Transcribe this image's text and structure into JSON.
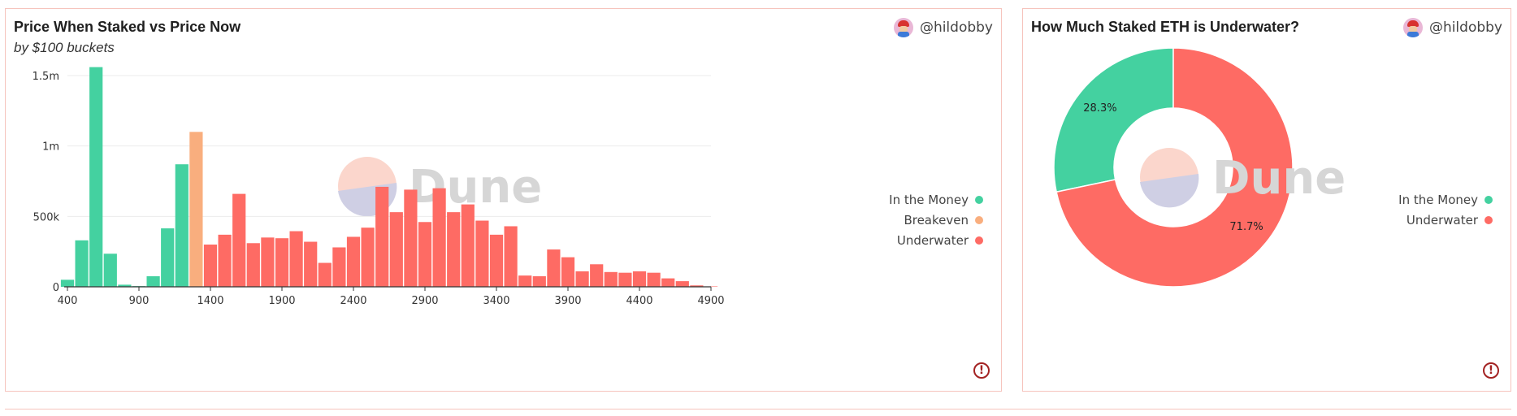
{
  "left_panel": {
    "title": "Price When Staked vs Price Now",
    "subtitle": "by $100 buckets",
    "author": "@hildobby",
    "warning_icon": "!",
    "watermark": "Dune"
  },
  "right_panel": {
    "title": "How Much Staked ETH is Underwater?",
    "author": "@hildobby",
    "warning_icon": "!",
    "watermark": "Dune"
  },
  "colors": {
    "in_the_money": "#44d1a0",
    "breakeven": "#f9ae7e",
    "underwater": "#fe6b64",
    "grid": "#ebebeb",
    "axis": "#333333"
  },
  "chart_data": [
    {
      "type": "bar",
      "title": "Price When Staked vs Price Now",
      "subtitle": "by $100 buckets",
      "xlabel": "",
      "ylabel": "",
      "xlim": [
        400,
        4900
      ],
      "ylim": [
        0,
        1500000
      ],
      "x_ticks": [
        400,
        900,
        1400,
        1900,
        2400,
        2900,
        3400,
        3900,
        4400,
        4900
      ],
      "y_ticks": [
        0,
        500000,
        1000000,
        1500000
      ],
      "y_tick_labels": [
        "0",
        "500k",
        "1m",
        "1.5m"
      ],
      "grid": true,
      "legend_position": "right",
      "legend": [
        {
          "name": "In the Money",
          "key": "in_the_money"
        },
        {
          "name": "Breakeven",
          "key": "breakeven"
        },
        {
          "name": "Underwater",
          "key": "underwater"
        }
      ],
      "bars": [
        {
          "x": 400,
          "value": 50000,
          "series": "in_the_money"
        },
        {
          "x": 500,
          "value": 330000,
          "series": "in_the_money"
        },
        {
          "x": 600,
          "value": 1560000,
          "series": "in_the_money"
        },
        {
          "x": 700,
          "value": 235000,
          "series": "in_the_money"
        },
        {
          "x": 800,
          "value": 15000,
          "series": "in_the_money"
        },
        {
          "x": 900,
          "value": 5000,
          "series": "in_the_money"
        },
        {
          "x": 1000,
          "value": 75000,
          "series": "in_the_money"
        },
        {
          "x": 1100,
          "value": 415000,
          "series": "in_the_money"
        },
        {
          "x": 1200,
          "value": 870000,
          "series": "in_the_money"
        },
        {
          "x": 1300,
          "value": 1100000,
          "series": "breakeven"
        },
        {
          "x": 1400,
          "value": 300000,
          "series": "underwater"
        },
        {
          "x": 1500,
          "value": 370000,
          "series": "underwater"
        },
        {
          "x": 1600,
          "value": 660000,
          "series": "underwater"
        },
        {
          "x": 1700,
          "value": 310000,
          "series": "underwater"
        },
        {
          "x": 1800,
          "value": 350000,
          "series": "underwater"
        },
        {
          "x": 1900,
          "value": 345000,
          "series": "underwater"
        },
        {
          "x": 2000,
          "value": 395000,
          "series": "underwater"
        },
        {
          "x": 2100,
          "value": 320000,
          "series": "underwater"
        },
        {
          "x": 2200,
          "value": 170000,
          "series": "underwater"
        },
        {
          "x": 2300,
          "value": 280000,
          "series": "underwater"
        },
        {
          "x": 2400,
          "value": 355000,
          "series": "underwater"
        },
        {
          "x": 2500,
          "value": 420000,
          "series": "underwater"
        },
        {
          "x": 2600,
          "value": 710000,
          "series": "underwater"
        },
        {
          "x": 2700,
          "value": 530000,
          "series": "underwater"
        },
        {
          "x": 2800,
          "value": 690000,
          "series": "underwater"
        },
        {
          "x": 2900,
          "value": 460000,
          "series": "underwater"
        },
        {
          "x": 3000,
          "value": 700000,
          "series": "underwater"
        },
        {
          "x": 3100,
          "value": 530000,
          "series": "underwater"
        },
        {
          "x": 3200,
          "value": 585000,
          "series": "underwater"
        },
        {
          "x": 3300,
          "value": 470000,
          "series": "underwater"
        },
        {
          "x": 3400,
          "value": 370000,
          "series": "underwater"
        },
        {
          "x": 3500,
          "value": 430000,
          "series": "underwater"
        },
        {
          "x": 3600,
          "value": 80000,
          "series": "underwater"
        },
        {
          "x": 3700,
          "value": 75000,
          "series": "underwater"
        },
        {
          "x": 3800,
          "value": 265000,
          "series": "underwater"
        },
        {
          "x": 3900,
          "value": 210000,
          "series": "underwater"
        },
        {
          "x": 4000,
          "value": 110000,
          "series": "underwater"
        },
        {
          "x": 4100,
          "value": 160000,
          "series": "underwater"
        },
        {
          "x": 4200,
          "value": 105000,
          "series": "underwater"
        },
        {
          "x": 4300,
          "value": 100000,
          "series": "underwater"
        },
        {
          "x": 4400,
          "value": 110000,
          "series": "underwater"
        },
        {
          "x": 4500,
          "value": 100000,
          "series": "underwater"
        },
        {
          "x": 4600,
          "value": 60000,
          "series": "underwater"
        },
        {
          "x": 4700,
          "value": 40000,
          "series": "underwater"
        },
        {
          "x": 4800,
          "value": 10000,
          "series": "underwater"
        },
        {
          "x": 4900,
          "value": 3000,
          "series": "underwater"
        }
      ]
    },
    {
      "type": "pie",
      "donut": true,
      "title": "How Much Staked ETH is Underwater?",
      "legend_position": "right",
      "slices": [
        {
          "name": "In the Money",
          "value": 28.3,
          "label": "28.3%",
          "key": "in_the_money"
        },
        {
          "name": "Underwater",
          "value": 71.7,
          "label": "71.7%",
          "key": "underwater"
        }
      ]
    }
  ]
}
